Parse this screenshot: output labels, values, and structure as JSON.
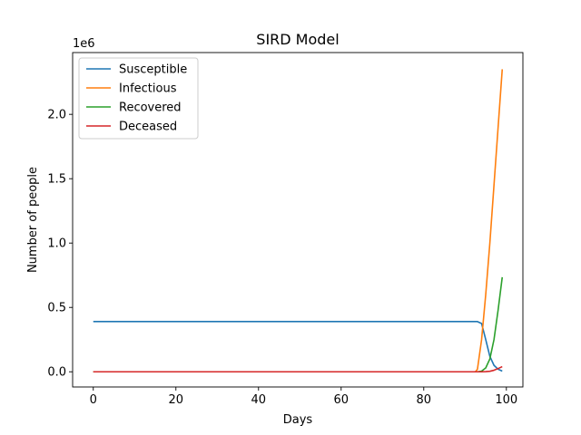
{
  "chart_data": {
    "type": "line",
    "title": "SIRD Model",
    "xlabel": "Days",
    "ylabel": "Number of people",
    "offset_label": "1e6",
    "xlim": [
      -5,
      104
    ],
    "ylim": [
      -0.118,
      2.48
    ],
    "xticks": [
      0,
      20,
      40,
      60,
      80,
      100
    ],
    "xtick_labels": [
      "0",
      "20",
      "40",
      "60",
      "80",
      "100"
    ],
    "yticks": [
      0.0,
      0.5,
      1.0,
      1.5,
      2.0
    ],
    "ytick_labels": [
      "0.0",
      "0.5",
      "1.0",
      "1.5",
      "2.0"
    ],
    "grid": false,
    "legend_position": "top-left",
    "series": [
      {
        "name": "Susceptible",
        "color": "#1f77b4",
        "x": [
          0,
          93,
          94,
          95,
          96,
          97,
          98,
          99
        ],
        "values": [
          0.39,
          0.39,
          0.375,
          0.25,
          0.12,
          0.05,
          0.02,
          0.005
        ]
      },
      {
        "name": "Infectious",
        "color": "#ff7f0e",
        "x": [
          0,
          92.5,
          93,
          94,
          95,
          96,
          97,
          98,
          99
        ],
        "values": [
          0.0,
          0.0,
          0.02,
          0.25,
          0.6,
          1.0,
          1.45,
          1.9,
          2.35
        ]
      },
      {
        "name": "Recovered",
        "color": "#2ca02c",
        "x": [
          0,
          93,
          94,
          95,
          96,
          97,
          98,
          99
        ],
        "values": [
          0.0,
          0.0,
          0.005,
          0.03,
          0.1,
          0.25,
          0.48,
          0.735
        ]
      },
      {
        "name": "Deceased",
        "color": "#d62728",
        "x": [
          0,
          93,
          94,
          95,
          96,
          97,
          98,
          99
        ],
        "values": [
          0.0,
          0.0,
          0.0,
          0.001,
          0.004,
          0.012,
          0.025,
          0.04
        ]
      }
    ]
  }
}
